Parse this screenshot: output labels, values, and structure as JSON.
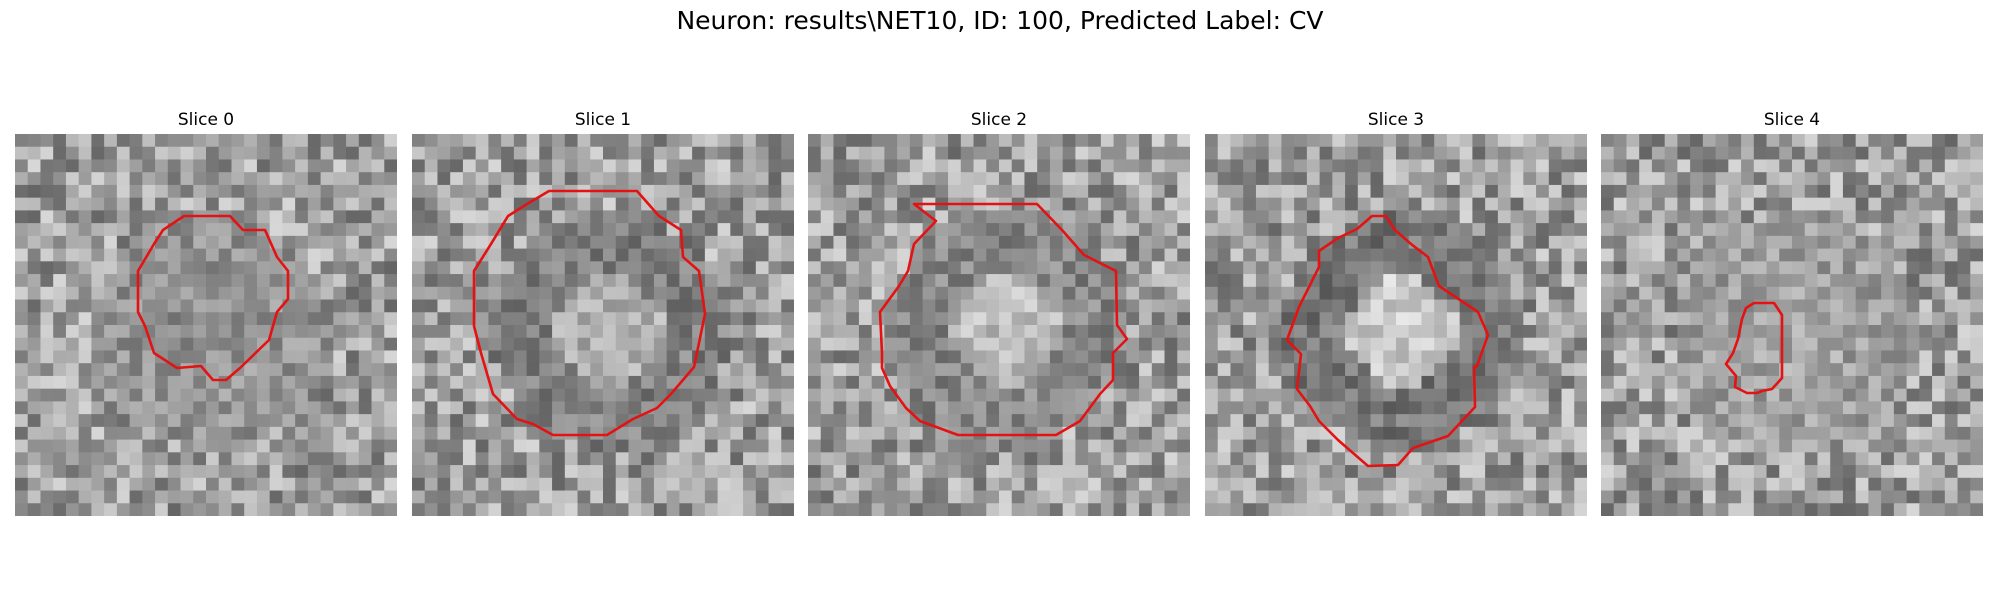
{
  "figure": {
    "title": "Neuron: results\\NET10, ID: 100, Predicted Label: CV",
    "contour_color": "#e41212",
    "colormap": "grayscale",
    "grid_size": 30
  },
  "slices": [
    {
      "label": "Slice 0",
      "seed": 11,
      "ring": 0.45,
      "center": 0.4
    },
    {
      "label": "Slice 1",
      "seed": 23,
      "ring": 0.3,
      "center": 0.62
    },
    {
      "label": "Slice 2",
      "seed": 37,
      "ring": 0.35,
      "center": 0.72
    },
    {
      "label": "Slice 3",
      "seed": 51,
      "ring": 0.22,
      "center": 0.82
    },
    {
      "label": "Slice 4",
      "seed": 67,
      "ring": 0.55,
      "center": 0.58
    }
  ]
}
